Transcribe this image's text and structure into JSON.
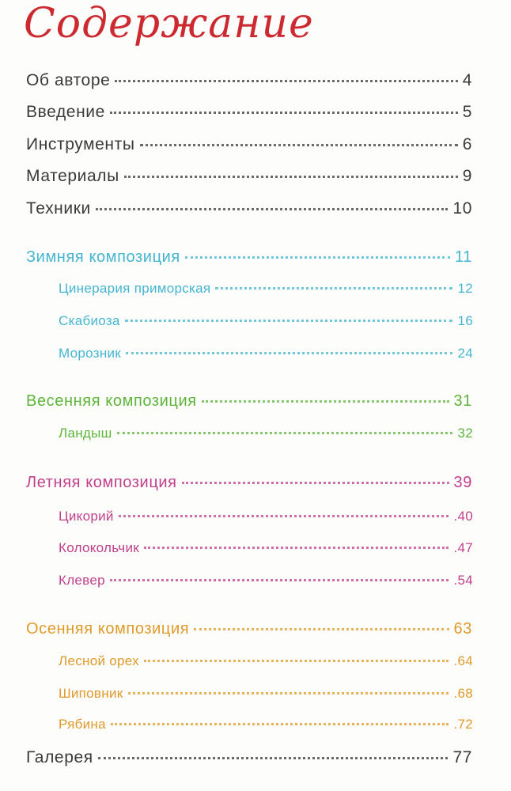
{
  "title": "Содержание",
  "entries": [
    {
      "label": "Об авторе",
      "page": "4"
    },
    {
      "label": "Введение",
      "page": "5"
    },
    {
      "label": "Инструменты",
      "page": "6"
    },
    {
      "label": "Материалы",
      "page": "9"
    },
    {
      "label": "Техники",
      "page": "10"
    }
  ],
  "winter": {
    "label": "Зимняя композиция",
    "page": "11",
    "color": "#45b6d1",
    "items": [
      {
        "label": "Цинерария приморская",
        "page": "12"
      },
      {
        "label": "Скабиоза",
        "page": "16"
      },
      {
        "label": "Морозник",
        "page": "24"
      }
    ]
  },
  "spring": {
    "label": "Весенняя композиция",
    "page": "31",
    "color": "#5db53a",
    "items": [
      {
        "label": "Ландыш",
        "page": "32"
      }
    ]
  },
  "summer": {
    "label": "Летняя композиция",
    "page": "39",
    "color": "#c2408b",
    "items": [
      {
        "label": "Цикорий",
        "page": ".40"
      },
      {
        "label": "Колокольчик",
        "page": ".47"
      },
      {
        "label": "Клевер",
        "page": ".54"
      }
    ]
  },
  "autumn": {
    "label": "Осенняя композиция",
    "page": "63",
    "color": "#e09a2a",
    "items": [
      {
        "label": "Лесной орех",
        "page": ".64"
      },
      {
        "label": "Шиповник",
        "page": ".68"
      },
      {
        "label": "Рябина",
        "page": ".72"
      }
    ]
  },
  "gallery": {
    "label": "Галерея",
    "page": "77"
  }
}
